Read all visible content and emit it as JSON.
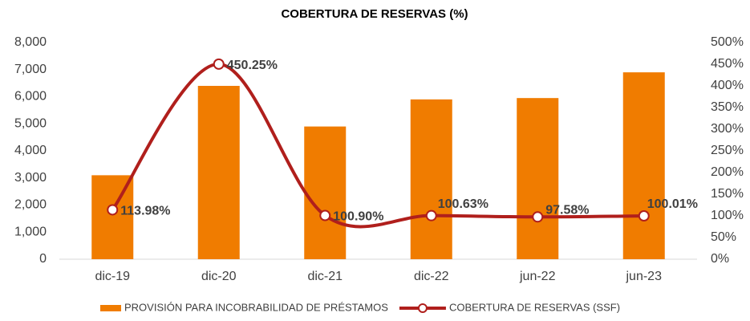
{
  "chart_data": {
    "type": "bar",
    "title": "COBERTURA DE RESERVAS (%)",
    "categories": [
      "dic-19",
      "dic-20",
      "dic-21",
      "dic-22",
      "jun-22",
      "jun-23"
    ],
    "series": [
      {
        "name": "PROVISIÓN PARA INCOBRABILIDAD DE PRÉSTAMOS",
        "type": "bar",
        "color": "#f07c00",
        "values": [
          3100,
          6400,
          4900,
          5900,
          5950,
          6900
        ]
      },
      {
        "name": "COBERTURA DE RESERVAS (SSF)",
        "type": "line",
        "axis": "y2",
        "color": "#b01f1c",
        "smooth": true,
        "values": [
          113.98,
          450.25,
          100.9,
          100.63,
          97.58,
          100.01
        ],
        "value_labels": [
          "113.98%",
          "450.25%",
          "100.90%",
          "100.63%",
          "97.58%",
          "100.01%"
        ]
      }
    ],
    "ylim": [
      0,
      8000
    ],
    "yticks": [
      0,
      {
        "value": 1000,
        "label": "1,000"
      },
      {
        "value": 2000,
        "label": "2,000"
      },
      {
        "value": 3000,
        "label": "3,000"
      },
      {
        "value": 4000,
        "label": "4,000"
      },
      {
        "value": 5000,
        "label": "5,000"
      },
      {
        "value": 6000,
        "label": "6,000"
      },
      {
        "value": 7000,
        "label": "7,000"
      },
      {
        "value": 8000,
        "label": "8,000"
      }
    ],
    "y2lim": [
      0,
      500
    ],
    "y2ticks": [
      {
        "value": 0,
        "label": "0%"
      },
      {
        "value": 50,
        "label": "50%"
      },
      {
        "value": 100,
        "label": "100%"
      },
      {
        "value": 150,
        "label": "150%"
      },
      {
        "value": 200,
        "label": "200%"
      },
      {
        "value": 250,
        "label": "250%"
      },
      {
        "value": 300,
        "label": "300%"
      },
      {
        "value": 350,
        "label": "350%"
      },
      {
        "value": 400,
        "label": "400%"
      },
      {
        "value": 450,
        "label": "450%"
      },
      {
        "value": 500,
        "label": "500%"
      }
    ],
    "grid": false,
    "legend": "bottom"
  }
}
